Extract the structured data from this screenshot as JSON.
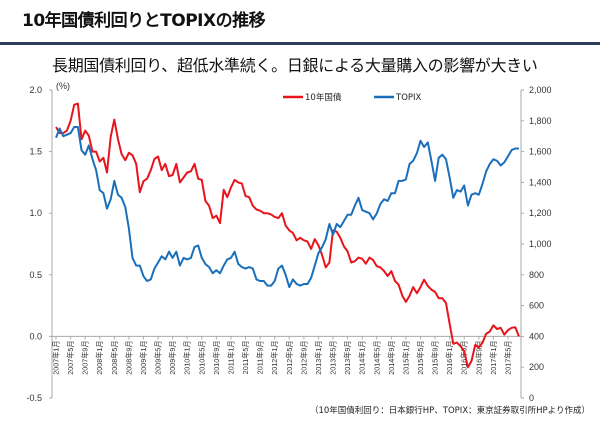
{
  "header": {
    "title": "10年国債利回りとTOPIXの推移"
  },
  "chart_data": {
    "type": "line",
    "title": "長期国債利回り、超低水準続く。日銀による大量購入の影響が大きい",
    "ylabel_left": "(%)",
    "ylim_left": [
      -0.5,
      2.0
    ],
    "yticks_left": [
      "2.0",
      "1.5",
      "1.0",
      "0.5",
      "0.0",
      "-0.5"
    ],
    "ylim_right": [
      0,
      2000
    ],
    "yticks_right": [
      "2,000",
      "1,800",
      "1,600",
      "1,400",
      "1,200",
      "1,000",
      "800",
      "600",
      "400",
      "200",
      "0"
    ],
    "x_start": "2007-01",
    "x_labels": [
      "2007年1月",
      "2007年5月",
      "2007年9月",
      "2008年1月",
      "2008年5月",
      "2008年9月",
      "2009年1月",
      "2009年5月",
      "2009年9月",
      "2010年1月",
      "2010年5月",
      "2010年9月",
      "2011年1月",
      "2011年5月",
      "2011年9月",
      "2012年1月",
      "2012年5月",
      "2012年9月",
      "2013年1月",
      "2013年5月",
      "2013年9月",
      "2014年1月",
      "2014年5月",
      "2014年9月",
      "2015年1月",
      "2015年5月",
      "2015年9月",
      "2016年1月",
      "2016年5月",
      "2016年9月",
      "2017年1月",
      "2017年5月"
    ],
    "legend_position": "top-center",
    "series": [
      {
        "name": "10年国債",
        "axis": "left",
        "color": "#e8141b",
        "values": [
          1.7,
          1.65,
          1.65,
          1.67,
          1.75,
          1.88,
          1.89,
          1.6,
          1.67,
          1.63,
          1.5,
          1.5,
          1.42,
          1.45,
          1.33,
          1.62,
          1.76,
          1.6,
          1.48,
          1.43,
          1.49,
          1.47,
          1.4,
          1.17,
          1.26,
          1.28,
          1.35,
          1.44,
          1.46,
          1.35,
          1.4,
          1.3,
          1.31,
          1.4,
          1.25,
          1.29,
          1.33,
          1.34,
          1.4,
          1.28,
          1.27,
          1.1,
          1.06,
          0.96,
          0.98,
          0.92,
          1.19,
          1.13,
          1.21,
          1.27,
          1.25,
          1.24,
          1.14,
          1.13,
          1.06,
          1.03,
          1.02,
          1.0,
          1.0,
          0.99,
          0.97,
          0.96,
          1.0,
          0.9,
          0.86,
          0.84,
          0.78,
          0.8,
          0.78,
          0.77,
          0.71,
          0.79,
          0.74,
          0.66,
          0.56,
          0.6,
          0.86,
          0.85,
          0.8,
          0.73,
          0.69,
          0.6,
          0.61,
          0.64,
          0.63,
          0.59,
          0.64,
          0.62,
          0.57,
          0.56,
          0.53,
          0.49,
          0.53,
          0.45,
          0.42,
          0.33,
          0.28,
          0.33,
          0.4,
          0.35,
          0.4,
          0.46,
          0.41,
          0.38,
          0.36,
          0.31,
          0.31,
          0.27,
          0.1,
          -0.06,
          -0.05,
          -0.08,
          -0.12,
          -0.25,
          -0.2,
          -0.07,
          -0.09,
          -0.05,
          0.02,
          0.04,
          0.09,
          0.06,
          0.07,
          0.015,
          0.05,
          0.07,
          0.075,
          0.0
        ]
      },
      {
        "name": "TOPIX",
        "axis": "right",
        "color": "#1a6fba",
        "values": [
          1690,
          1750,
          1700,
          1710,
          1720,
          1760,
          1760,
          1610,
          1580,
          1640,
          1550,
          1480,
          1350,
          1330,
          1230,
          1290,
          1410,
          1320,
          1300,
          1240,
          1100,
          910,
          860,
          860,
          790,
          760,
          770,
          840,
          880,
          920,
          900,
          950,
          910,
          950,
          860,
          910,
          900,
          910,
          980,
          990,
          910,
          870,
          850,
          810,
          830,
          810,
          860,
          900,
          910,
          950,
          870,
          850,
          840,
          850,
          840,
          770,
          760,
          760,
          730,
          730,
          760,
          840,
          860,
          800,
          720,
          770,
          740,
          730,
          740,
          740,
          780,
          860,
          940,
          980,
          1030,
          1130,
          1060,
          1130,
          1110,
          1150,
          1190,
          1190,
          1250,
          1300,
          1220,
          1210,
          1200,
          1160,
          1200,
          1260,
          1290,
          1280,
          1330,
          1330,
          1410,
          1410,
          1420,
          1520,
          1540,
          1590,
          1670,
          1630,
          1660,
          1540,
          1410,
          1560,
          1580,
          1550,
          1430,
          1300,
          1350,
          1340,
          1380,
          1250,
          1320,
          1330,
          1320,
          1390,
          1470,
          1520,
          1550,
          1540,
          1510,
          1530,
          1570,
          1610,
          1620,
          1620
        ]
      }
    ]
  },
  "source_note": "（10年国債利回り：日本銀行HP、TOPIX：東京証券取引所HPより作成）"
}
